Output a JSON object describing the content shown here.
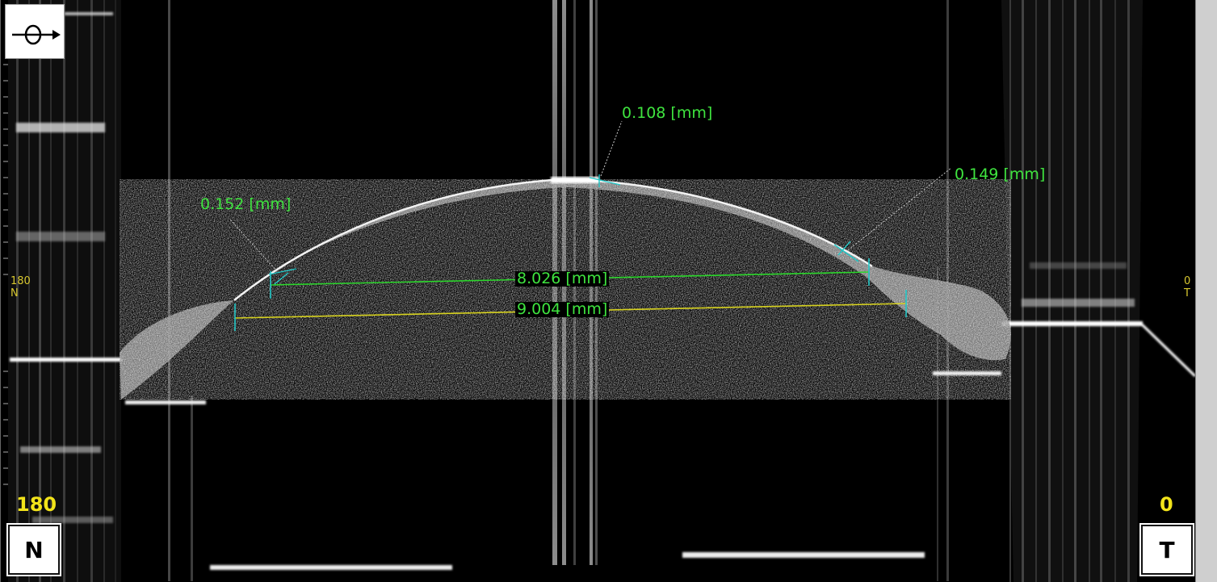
{
  "measurements": {
    "thickness_center": "0.108 [mm]",
    "thickness_left": "0.152 [mm]",
    "thickness_right": "0.149 [mm]",
    "chord_inner": "8.026 [mm]",
    "chord_outer": "9.004 [mm]"
  },
  "side_left": {
    "small_num": "180",
    "small_letter": "N",
    "big_num": "180",
    "box": "N"
  },
  "side_right": {
    "small_num": "0",
    "small_letter": "T",
    "big_num": "0",
    "box": "T"
  },
  "orientation_icon": "eye-scan-direction-icon",
  "colors": {
    "measure_green": "#3fe43f",
    "measure_yellow": "#d6d11f",
    "caliper_cyan": "#22c8c8",
    "side_label": "#f2e31a"
  }
}
